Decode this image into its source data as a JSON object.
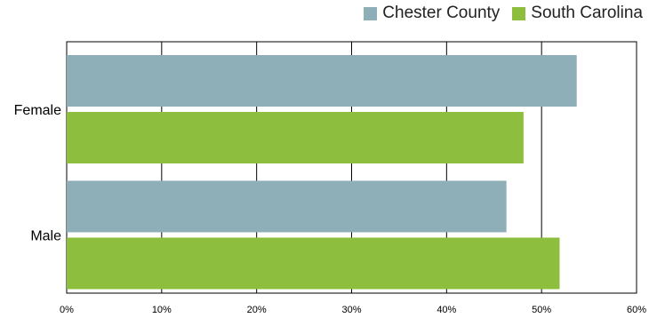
{
  "chart_data": {
    "type": "bar",
    "orientation": "horizontal",
    "categories": [
      "Female",
      "Male"
    ],
    "series": [
      {
        "name": "Chester County",
        "values": [
          53.7,
          46.3
        ],
        "color": "#8eaeb8"
      },
      {
        "name": "South Carolina",
        "values": [
          48.1,
          51.9
        ],
        "color": "#8dbe3e"
      }
    ],
    "xlim": [
      0,
      60
    ],
    "x_ticks": [
      {
        "value": 0,
        "label": "0%"
      },
      {
        "value": 10,
        "label": "10%"
      },
      {
        "value": 20,
        "label": "20%"
      },
      {
        "value": 30,
        "label": "30%"
      },
      {
        "value": 40,
        "label": "40%"
      },
      {
        "value": 50,
        "label": "50%"
      },
      {
        "value": 60,
        "label": "60%"
      }
    ],
    "grid": true,
    "legend_position": "top-right"
  }
}
